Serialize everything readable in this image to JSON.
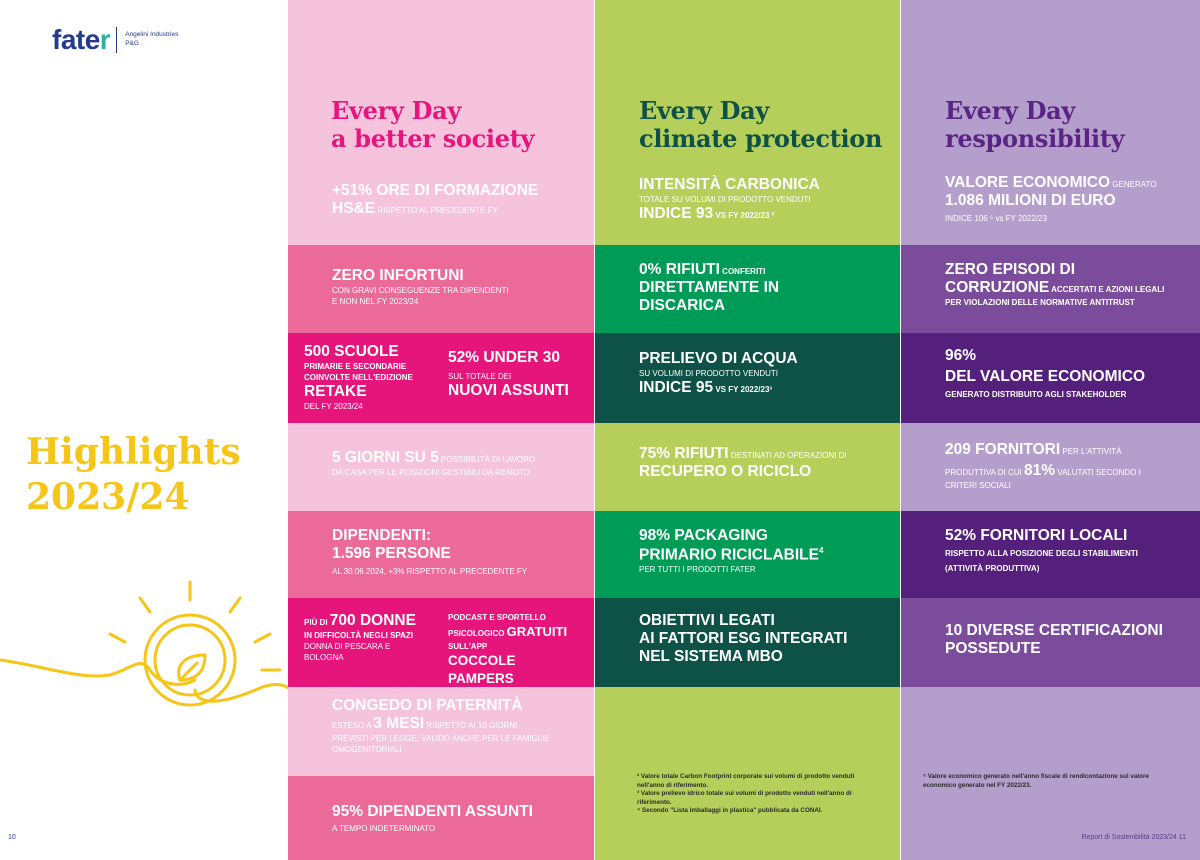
{
  "logo": {
    "brand": "fate",
    "brand_tail": "r",
    "partners": [
      "Angelini Industries",
      "P&G"
    ]
  },
  "highlights_title": [
    "Highlights",
    "2023/24"
  ],
  "pages": {
    "left": "10",
    "right": "Report di Sostenibilità 2023/24    11"
  },
  "colors": {
    "pink_light": "#f5c3dc",
    "pink_mid": "#eb6a97",
    "magenta": "#e6157c",
    "green_light": "#b6cf5a",
    "green": "#009c57",
    "green_dark": "#0e5146",
    "purple_light": "#b49ecb",
    "purple_mid": "#7c4c9c",
    "purple_dark": "#55207c",
    "yellow": "#f5c518"
  },
  "col1": {
    "title": [
      "Every Day",
      "a better society"
    ],
    "c1": {
      "big": "+51% ORE DI FORMAZIONE",
      "big2": "HS&E",
      "small": " RISPETTO AL PRECEDENTE FY"
    },
    "c2": {
      "big": "ZERO INFORTUNI",
      "small1": "CON GRAVI CONSEGUENZE TRA DIPENDENTI",
      "small2": "E NON NEL FY 2023/24"
    },
    "c3": {
      "big1": "500 SCUOLE",
      "small1": "PRIMARIE E SECONDARIE",
      "small2": "COINVOLTE NELL'EDIZIONE",
      "big2": "RETAKE",
      "small3": "DEL FY 2023/24",
      "big3": "52% UNDER 30",
      "small4": "SUL TOTALE DEI",
      "big4": "NUOVI ASSUNTI"
    },
    "c4": {
      "big": "5 GIORNI SU 5",
      "small1": " POSSIBILITÀ DI LAVORO",
      "small2": "DA CASA PER LE POSIZIONI GESTIBILI DA REMOTO"
    },
    "c5": {
      "big1": "DIPENDENTI:",
      "big2": "1.596 PERSONE",
      "small": "AL 30.06.2024, +3% RISPETTO AL PRECEDENTE FY"
    },
    "c6": {
      "small1": "PIÙ DI ",
      "big1": "700 DONNE",
      "small2": "IN DIFFICOLTÀ NEGLI SPAZI",
      "small3": "DONNA DI PESCARA E",
      "small4": "BOLOGNA",
      "small5": "PODCAST E SPORTELLO",
      "small6": "PSICOLOGICO ",
      "big2": "GRATUITI",
      "small7": "SULL'APP",
      "big3": "COCCOLE PAMPERS"
    },
    "c7": {
      "big1": "CONGEDO DI PATERNITÀ",
      "small1": "ESTESO A ",
      "big2": "3 MESI",
      "small2": " RISPETTO AI 10 GIORNI",
      "small3": "PREVISTI PER LEGGE, VALIDO ANCHE PER LE FAMIGLIE",
      "small4": "OMOGENITORIALI"
    },
    "c8": {
      "big": "95% DIPENDENTI ASSUNTI",
      "small": "A TEMPO INDETERMINATO"
    }
  },
  "col2": {
    "title": [
      "Every Day",
      "climate protection"
    ],
    "c1": {
      "big1": "INTENSITÀ CARBONICA",
      "small1": "TOTALE SU VOLUMI DI PRODOTTO VENDUTI",
      "big2": "INDICE 93",
      "small2": " VS FY 2022/23 ²"
    },
    "c2": {
      "big1": "0% RIFIUTI",
      "small1": " CONFERITI",
      "big2": "DIRETTAMENTE IN",
      "big3": "DISCARICA"
    },
    "c3": {
      "big1": "PRELIEVO DI ACQUA",
      "small1": "SU VOLUMI DI PRODOTTO VENDUTI",
      "big2": "INDICE 95",
      "small2": " VS FY 2022/23³"
    },
    "c4": {
      "big1": "75% RIFIUTI",
      "small1": " DESTINATI AD OPERAZIONI DI",
      "big2": "RECUPERO O RICICLO"
    },
    "c5": {
      "big1": "98% PACKAGING",
      "big2": "PRIMARIO RICICLABILE",
      "sup": "4",
      "small": "PER TUTTI I PRODOTTI FATER"
    },
    "c6": {
      "big1": "OBIETTIVI LEGATI",
      "big2": "AI FATTORI ESG INTEGRATI",
      "big3": "NEL SISTEMA MBO"
    },
    "footnotes": [
      "²  Valore totale Carbon Footprint corporate sui volumi di prodotto venduti",
      "    nell'anno di riferimento.",
      "³  Valore prelievo idrico totale sui volumi di prodotto venduti nell'anno di",
      "    riferimento.",
      "⁴  Secondo \"Lista imballaggi in plastica\" pubblicata da CONAI."
    ]
  },
  "col3": {
    "title": [
      "Every Day",
      "responsibility"
    ],
    "c1": {
      "big1": "VALORE ECONOMICO",
      "small1": " GENERATO",
      "big2": "1.086 MILIONI DI EURO",
      "small2": "INDICE 106 ⁵ vs FY 2022/23"
    },
    "c2": {
      "big1": "ZERO EPISODI DI",
      "big2": "CORRUZIONE",
      "small1": " ACCERTATI E AZIONI LEGALI",
      "small2": "PER VIOLAZIONI DELLE NORMATIVE ANTITRUST"
    },
    "c3": {
      "big1": "96%",
      "big2": "DEL VALORE ECONOMICO",
      "small": "GENERATO DISTRIBUITO AGLI STAKEHOLDER"
    },
    "c4": {
      "big1": "209 FORNITORI",
      "small1": " PER L'ATTIVITÀ",
      "small2": "PRODUTTIVA DI CUI ",
      "big2": "81%",
      "small3": " VALUTATI SECONDO I",
      "small4": "CRITERI SOCIALI"
    },
    "c5": {
      "big": "52% FORNITORI LOCALI",
      "small1": "RISPETTO ALLA POSIZIONE DEGLI STABILIMENTI",
      "small2": "(ATTIVITÀ PRODUTTIVA)"
    },
    "c6": {
      "big1": "10 DIVERSE CERTIFICAZIONI",
      "big2": "POSSEDUTE"
    },
    "footnotes": [
      "⁵  Valore economico generato nell'anno fiscale di rendicontazione sul valore",
      "    economico generato nel FY 2022/23."
    ]
  }
}
